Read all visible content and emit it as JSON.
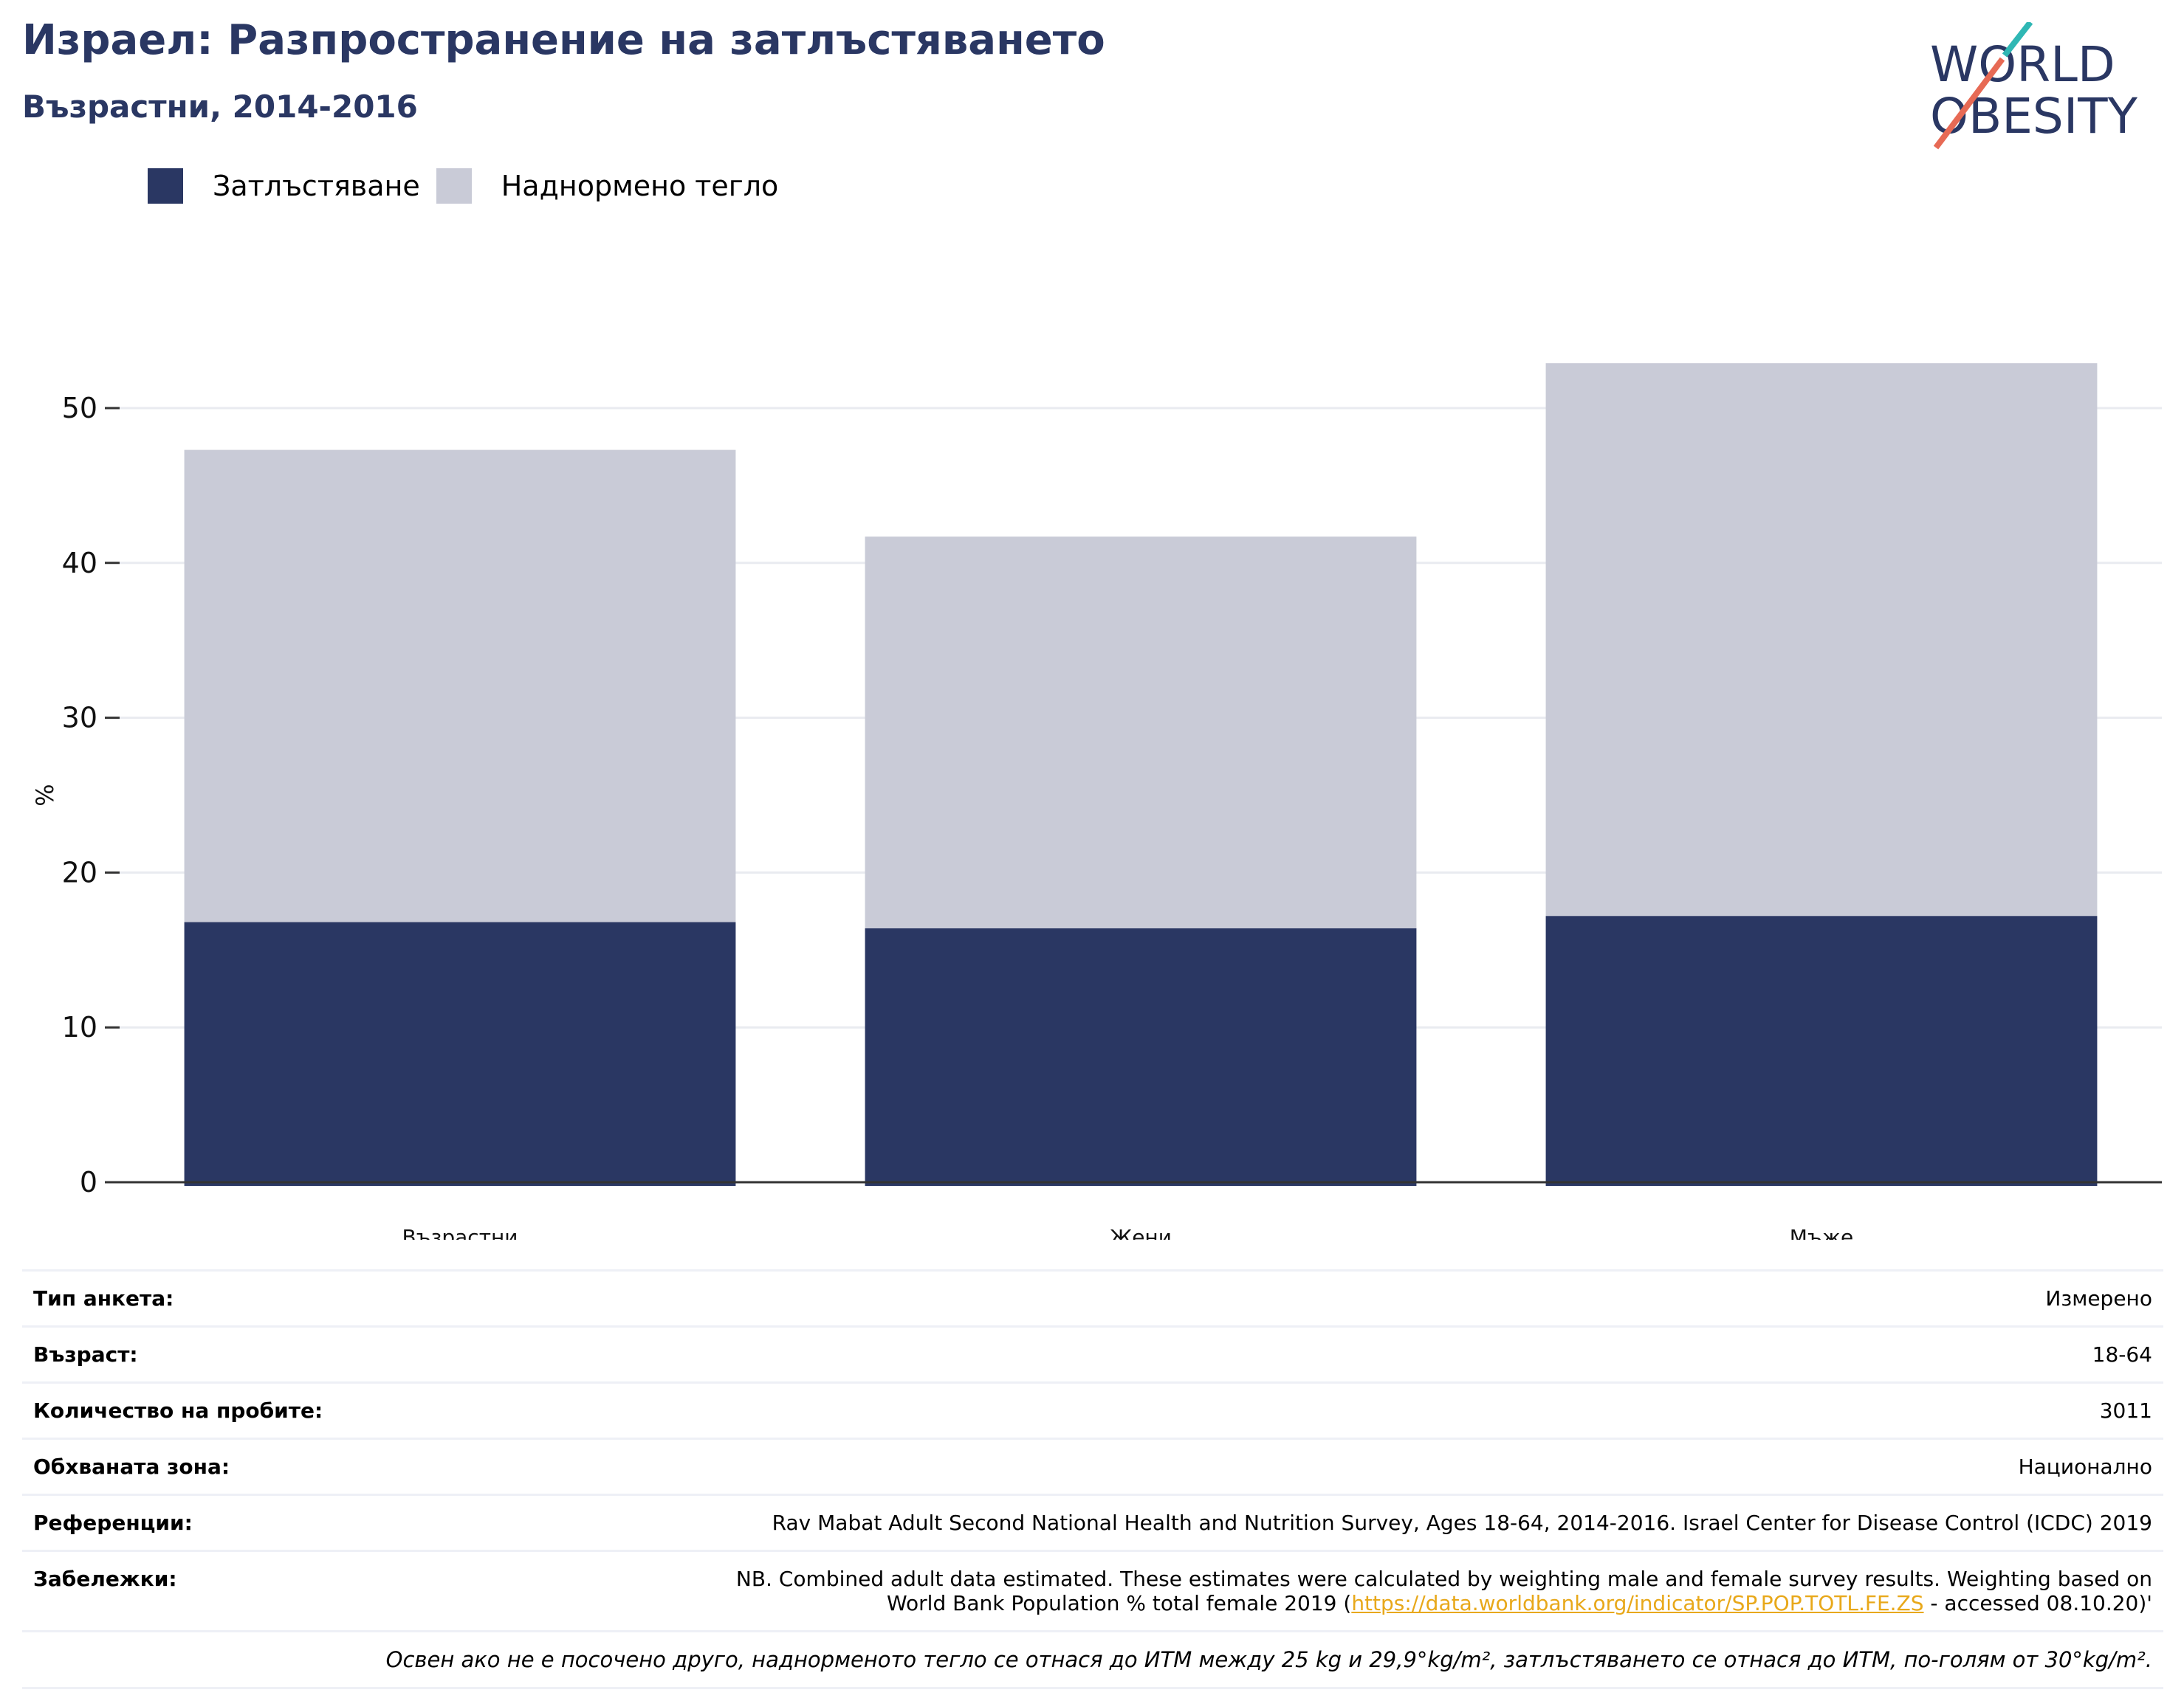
{
  "header": {
    "title": "Израел: Разпространение на затлъстяването",
    "subtitle": "Възрастни, 2014-2016"
  },
  "logo": {
    "line1": "WORLD",
    "line2": "OBESITY"
  },
  "colors": {
    "obesity": "#2a3763",
    "overweight": "#c9cbd7",
    "title": "#2a3763",
    "link": "#e8a81a",
    "grid": "#e9ebf0"
  },
  "chart_data": {
    "type": "bar",
    "stacked": true,
    "categories": [
      "Възрастни",
      "Жени",
      "Мъже"
    ],
    "series": [
      {
        "name": "Затлъстяване",
        "values": [
          16.8,
          16.4,
          17.2
        ],
        "color": "#2a3763"
      },
      {
        "name": "Наднормено тегло",
        "values": [
          30.5,
          25.3,
          35.7
        ],
        "color": "#c9cbd7"
      }
    ],
    "ylabel": "%",
    "ylim": [
      0,
      55
    ],
    "yticks": [
      0,
      10,
      20,
      30,
      40,
      50
    ],
    "grid": true,
    "legend_position": "top-left"
  },
  "info": {
    "rows": [
      {
        "label": "Тип анкета:",
        "value": "Измерено"
      },
      {
        "label": "Възраст:",
        "value": "18-64"
      },
      {
        "label": "Количество на пробите:",
        "value": "3011"
      },
      {
        "label": "Обхваната зона:",
        "value": "Национално"
      },
      {
        "label": "Референции:",
        "value": "Rav Mabat Adult Second National Health and Nutrition Survey, Ages 18-64, 2014-2016. Israel Center for Disease Control (ICDC) 2019"
      }
    ],
    "notes_label": "Забележки:",
    "notes_line1": "NB. Combined adult data estimated. These estimates were calculated by weighting male and female survey results. Weighting based on",
    "notes_line2_pre": "World Bank Population % total female 2019 (",
    "notes_link": "https://data.worldbank.org/indicator/SP.POP.TOTL.FE.ZS",
    "notes_line2_post": " - accessed 08.10.20)'",
    "footnote": "Освен ако не е посочено друго, наднорменото тегло се отнася до ИТМ между 25 kg и 29,9°kg/m², затлъстяването се отнася до ИТМ, по-голям от 30°kg/m²."
  }
}
